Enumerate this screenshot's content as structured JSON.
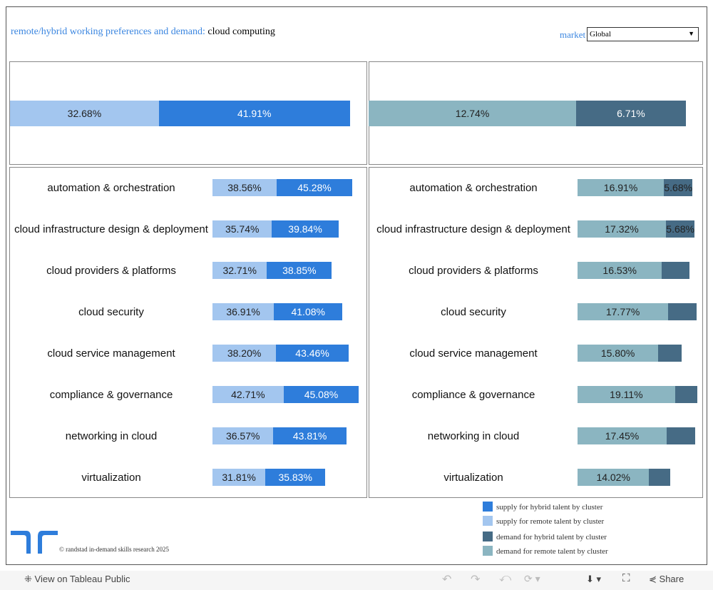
{
  "header": {
    "title_prefix": "remote/hybrid working preferences and demand:",
    "title_topic": "cloud computing",
    "market_label": "market",
    "market_value": "Global"
  },
  "colors": {
    "supply_hybrid": "#2e7ddb",
    "supply_remote": "#a3c6ef",
    "demand_hybrid": "#466b85",
    "demand_remote": "#8bb5c1"
  },
  "overall": {
    "supply_remote": {
      "value": 32.68,
      "label": "32.68%"
    },
    "supply_hybrid": {
      "value": 41.91,
      "label": "41.91%"
    },
    "demand_remote": {
      "value": 12.74,
      "label": "12.74%"
    },
    "demand_hybrid": {
      "value": 6.71,
      "label": "6.71%"
    }
  },
  "clusters": [
    {
      "name": "automation & orchestration",
      "supply_remote": 38.56,
      "supply_remote_label": "38.56%",
      "supply_hybrid": 45.28,
      "supply_hybrid_label": "45.28%",
      "demand_remote": 16.91,
      "demand_remote_label": "16.91%",
      "demand_hybrid": 5.68,
      "demand_hybrid_label": "5.68%"
    },
    {
      "name": "cloud infrastructure design & deployment",
      "supply_remote": 35.74,
      "supply_remote_label": "35.74%",
      "supply_hybrid": 39.84,
      "supply_hybrid_label": "39.84%",
      "demand_remote": 17.32,
      "demand_remote_label": "17.32%",
      "demand_hybrid": 5.68,
      "demand_hybrid_label": "5.68%"
    },
    {
      "name": "cloud providers & platforms",
      "supply_remote": 32.71,
      "supply_remote_label": "32.71%",
      "supply_hybrid": 38.85,
      "supply_hybrid_label": "38.85%",
      "demand_remote": 16.53,
      "demand_remote_label": "16.53%",
      "demand_hybrid": 5.5
    },
    {
      "name": "cloud security",
      "supply_remote": 36.91,
      "supply_remote_label": "36.91%",
      "supply_hybrid": 41.08,
      "supply_hybrid_label": "41.08%",
      "demand_remote": 17.77,
      "demand_remote_label": "17.77%",
      "demand_hybrid": 5.6
    },
    {
      "name": "cloud service management",
      "supply_remote": 38.2,
      "supply_remote_label": "38.20%",
      "supply_hybrid": 43.46,
      "supply_hybrid_label": "43.46%",
      "demand_remote": 15.8,
      "demand_remote_label": "15.80%",
      "demand_hybrid": 4.7
    },
    {
      "name": "compliance & governance",
      "supply_remote": 42.71,
      "supply_remote_label": "42.71%",
      "supply_hybrid": 45.08,
      "supply_hybrid_label": "45.08%",
      "demand_remote": 19.11,
      "demand_remote_label": "19.11%",
      "demand_hybrid": 4.4
    },
    {
      "name": "networking in cloud",
      "supply_remote": 36.57,
      "supply_remote_label": "36.57%",
      "supply_hybrid": 43.81,
      "supply_hybrid_label": "43.81%",
      "demand_remote": 17.45,
      "demand_remote_label": "17.45%",
      "demand_hybrid": 5.7
    },
    {
      "name": "virtualization",
      "supply_remote": 31.81,
      "supply_remote_label": "31.81%",
      "supply_hybrid": 35.83,
      "supply_hybrid_label": "35.83%",
      "demand_remote": 14.02,
      "demand_remote_label": "14.02%",
      "demand_hybrid": 4.2
    }
  ],
  "legend": [
    "supply for hybrid talent by cluster",
    "supply for remote talent by cluster",
    "demand for hybrid talent by cluster",
    "demand for remote talent by cluster"
  ],
  "footer": {
    "copyright": "© randstad in-demand skills research 2025"
  },
  "toolbar": {
    "view_label": "View on Tableau Public",
    "share_label": "Share"
  }
}
